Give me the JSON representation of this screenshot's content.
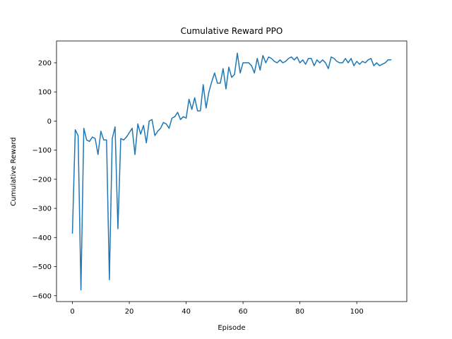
{
  "chart_data": {
    "type": "line",
    "title": "Cumulative Reward PPO",
    "xlabel": "Episode",
    "ylabel": "Cumulative Reward",
    "xlim": [
      -5.6,
      117.6
    ],
    "ylim": [
      -620,
      275
    ],
    "xticks": [
      0,
      20,
      40,
      60,
      80,
      100
    ],
    "yticks": [
      -600,
      -500,
      -400,
      -300,
      -200,
      -100,
      0,
      100,
      200
    ],
    "grid": false,
    "line_color": "#1f77b4",
    "series": [
      {
        "x": [
          0,
          1,
          2,
          3,
          4,
          5,
          6,
          7,
          8,
          9,
          10,
          11,
          12,
          13,
          14,
          15,
          16,
          17,
          18,
          19,
          20,
          21,
          22,
          23,
          24,
          25,
          26,
          27,
          28,
          29,
          30,
          31,
          32,
          33,
          34,
          35,
          36,
          37,
          38,
          39,
          40,
          41,
          42,
          43,
          44,
          45,
          46,
          47,
          48,
          49,
          50,
          51,
          52,
          53,
          54,
          55,
          56,
          57,
          58,
          59,
          60,
          61,
          62,
          63,
          64,
          65,
          66,
          67,
          68,
          69,
          70,
          71,
          72,
          73,
          74,
          75,
          76,
          77,
          78,
          79,
          80,
          81,
          82,
          83,
          84,
          85,
          86,
          87,
          88,
          89,
          90,
          91,
          92,
          93,
          94,
          95,
          96,
          97,
          98,
          99,
          100,
          101,
          102,
          103,
          104,
          105,
          106,
          107,
          108,
          109,
          110,
          111,
          112
        ],
        "y": [
          -385,
          -30,
          -50,
          -580,
          -25,
          -65,
          -70,
          -55,
          -60,
          -115,
          -35,
          -65,
          -65,
          -545,
          -60,
          -20,
          -370,
          -60,
          -65,
          -55,
          -40,
          -25,
          -115,
          -10,
          -45,
          -15,
          -75,
          0,
          5,
          -50,
          -35,
          -25,
          -5,
          -10,
          -25,
          10,
          15,
          30,
          5,
          15,
          10,
          75,
          40,
          80,
          35,
          35,
          125,
          45,
          100,
          135,
          165,
          130,
          130,
          180,
          110,
          185,
          150,
          160,
          233,
          165,
          200,
          200,
          200,
          190,
          165,
          215,
          175,
          225,
          200,
          220,
          215,
          205,
          200,
          210,
          200,
          205,
          215,
          220,
          210,
          220,
          200,
          210,
          195,
          215,
          215,
          190,
          210,
          200,
          210,
          200,
          180,
          220,
          215,
          205,
          200,
          200,
          215,
          200,
          215,
          190,
          205,
          195,
          205,
          200,
          210,
          215,
          190,
          200,
          190,
          195,
          200,
          210,
          210
        ]
      }
    ]
  }
}
